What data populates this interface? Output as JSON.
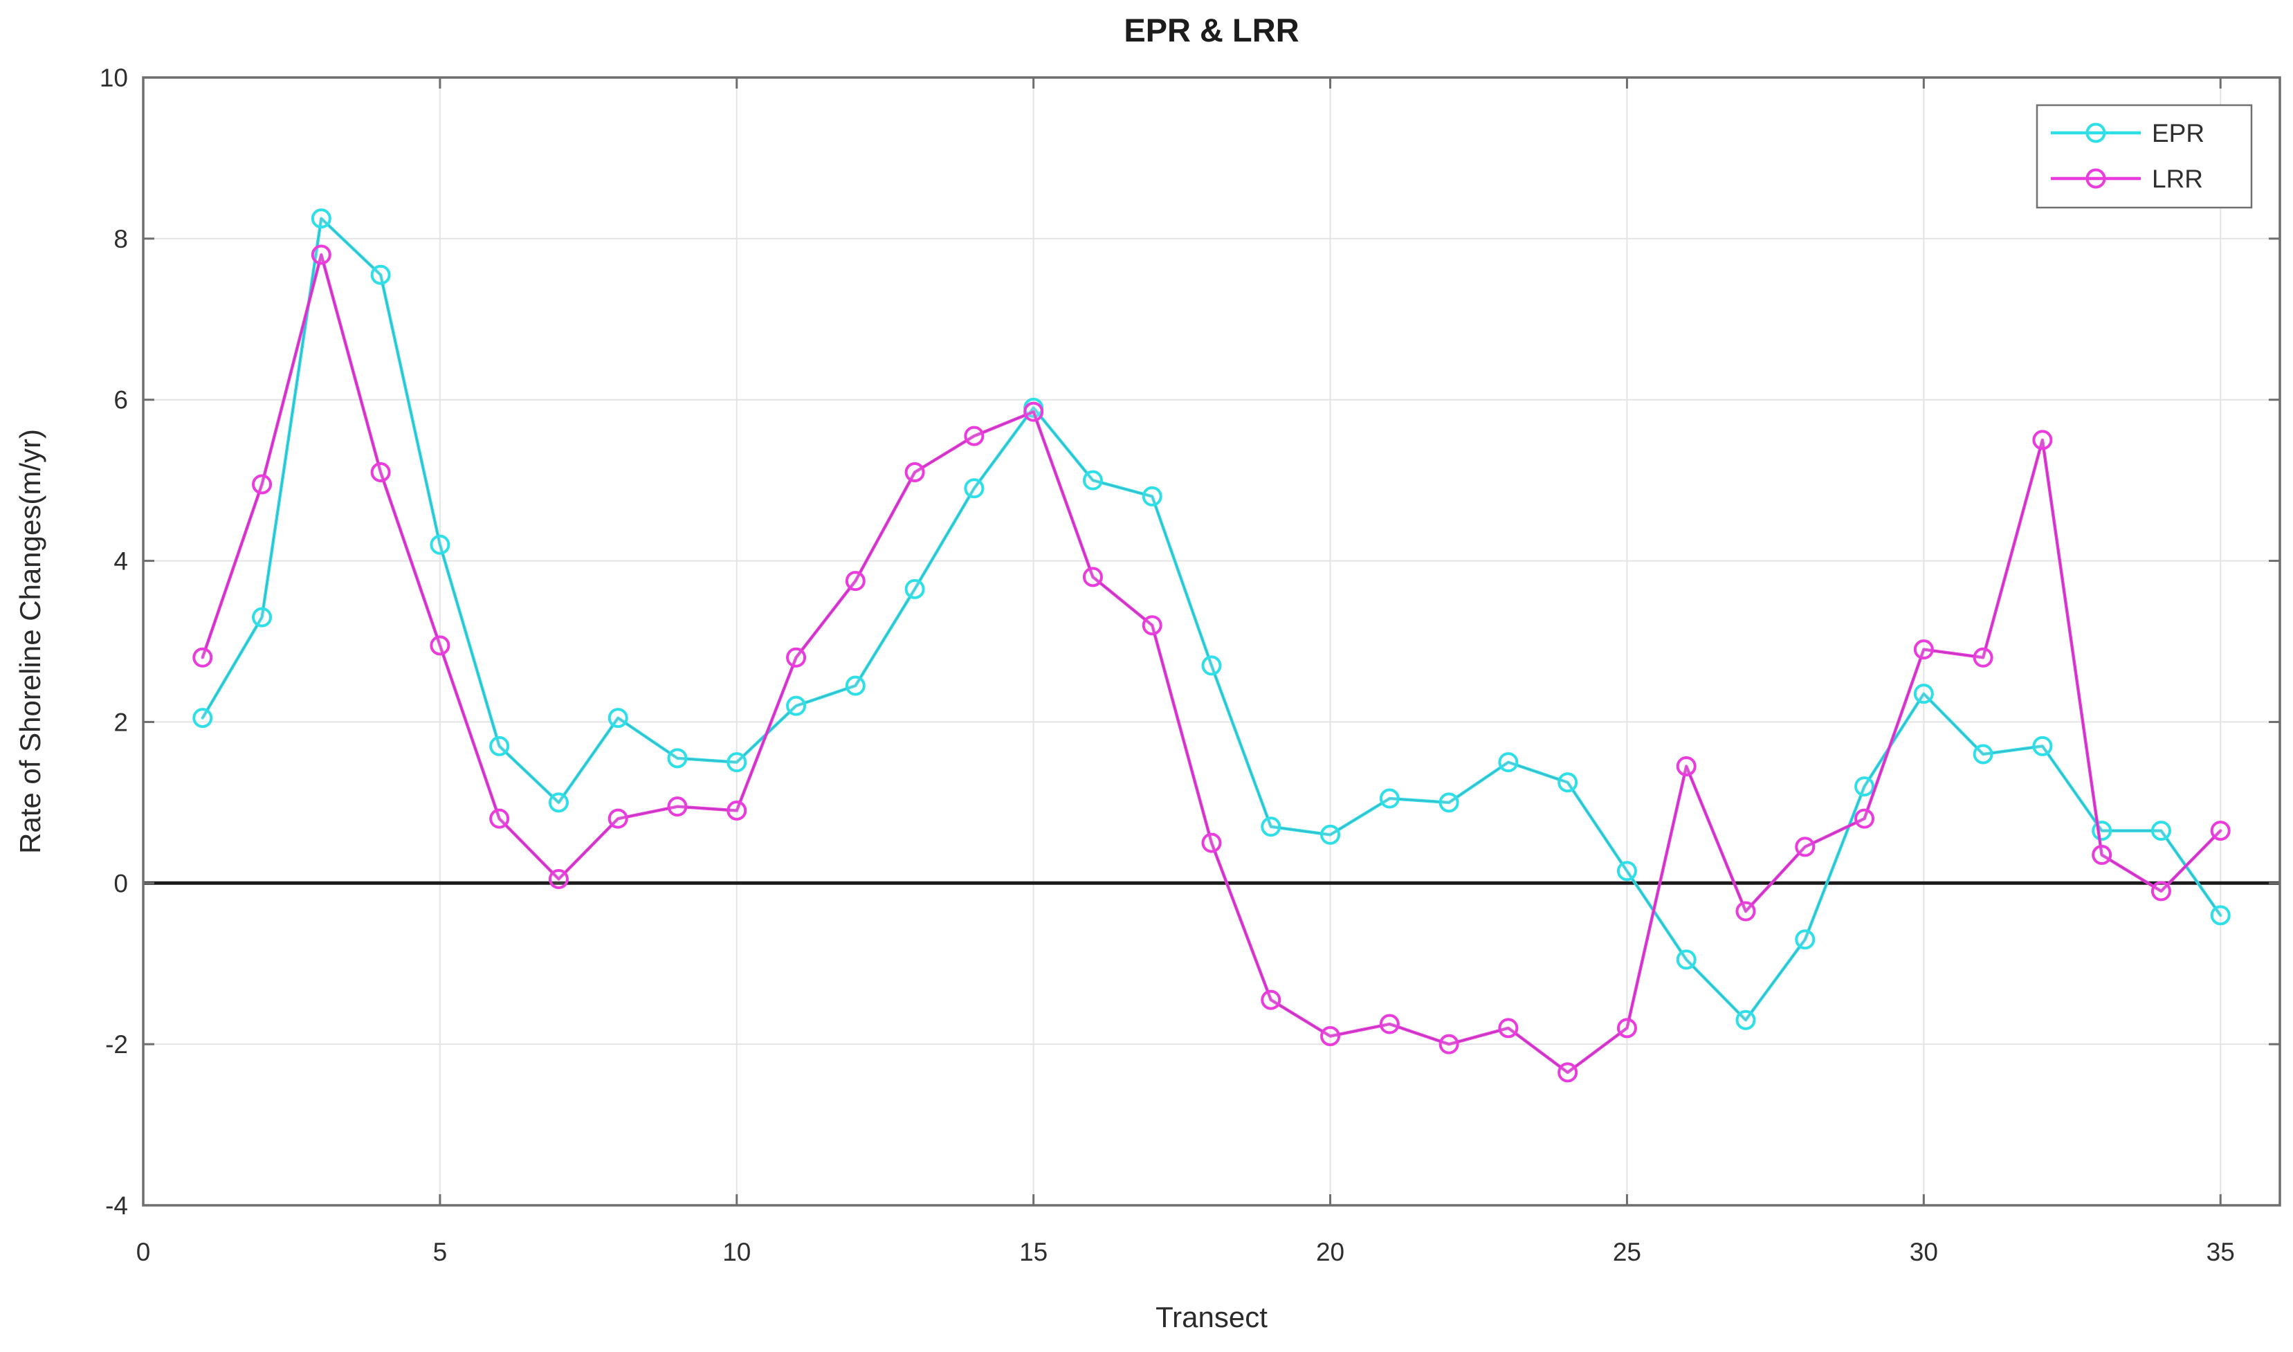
{
  "chart_data": {
    "type": "line",
    "title": "EPR & LRR",
    "xlabel": "Transect",
    "ylabel": "Rate of Shoreline Changes(m/yr)",
    "xlim": [
      0,
      36
    ],
    "ylim": [
      -4,
      10
    ],
    "xticks": [
      0,
      5,
      10,
      15,
      20,
      25,
      30,
      35
    ],
    "yticks": [
      -4,
      -2,
      0,
      2,
      4,
      6,
      8,
      10
    ],
    "grid": true,
    "zero_line_y": 0,
    "zero_line_color": "#1b1b1b",
    "legend_position": "top-right",
    "x": [
      1,
      2,
      3,
      4,
      5,
      6,
      7,
      8,
      9,
      10,
      11,
      12,
      13,
      14,
      15,
      16,
      17,
      18,
      19,
      20,
      21,
      22,
      23,
      24,
      25,
      26,
      27,
      28,
      29,
      30,
      31,
      32,
      33,
      34,
      35
    ],
    "series": [
      {
        "name": "EPR",
        "color": "#2fdfe8",
        "core_color": "#3f9fb4",
        "marker": "circle",
        "values": [
          2.05,
          3.3,
          8.25,
          7.55,
          4.2,
          1.7,
          1.0,
          2.05,
          1.55,
          1.5,
          2.2,
          2.45,
          3.65,
          4.9,
          5.9,
          5.0,
          4.8,
          2.7,
          0.7,
          0.6,
          1.05,
          1.0,
          1.5,
          1.25,
          0.15,
          -0.95,
          -1.7,
          -0.7,
          1.2,
          2.35,
          1.6,
          1.7,
          0.65,
          0.65,
          -0.4
        ]
      },
      {
        "name": "LRR",
        "color": "#ea3bdc",
        "core_color": "#a934ae",
        "marker": "circle",
        "values": [
          2.8,
          4.95,
          7.8,
          5.1,
          2.95,
          0.8,
          0.05,
          0.8,
          0.95,
          0.9,
          2.8,
          3.75,
          5.1,
          5.55,
          5.85,
          3.8,
          3.2,
          0.5,
          -1.45,
          -1.9,
          -1.75,
          -2.0,
          -1.8,
          -2.35,
          -1.8,
          1.45,
          -0.35,
          0.45,
          0.8,
          2.9,
          2.8,
          5.5,
          0.35,
          -0.1,
          0.65
        ]
      }
    ],
    "colors": {
      "grid": "#e4e4e4",
      "axis": "#6e6e6e",
      "tick_text": "#333333",
      "legend_border": "#707070",
      "legend_text": "#2b2b2b",
      "background": "#ffffff"
    }
  }
}
